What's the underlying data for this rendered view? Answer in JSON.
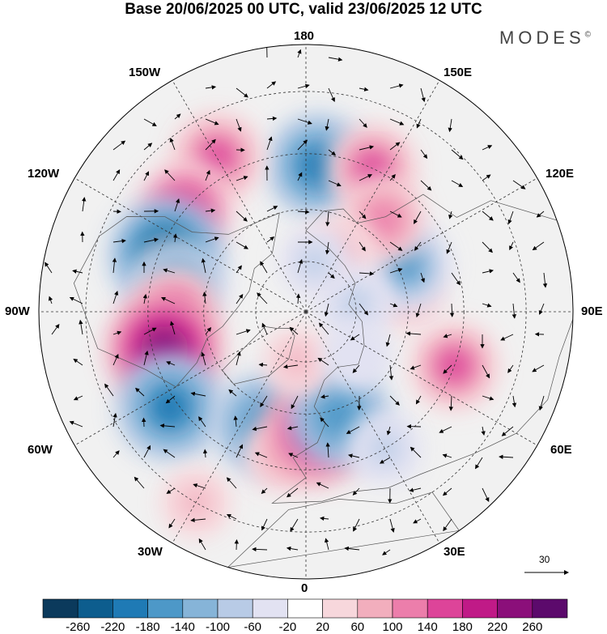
{
  "title": "Base 20/06/2025 00 UTC, valid 23/06/2025 12 UTC",
  "brand": {
    "text": "MODES",
    "mark": "©"
  },
  "longitude_labels": {
    "top": "180",
    "bottom": "0",
    "left": "90W",
    "right": "90E",
    "top_left": "150W",
    "top_right": "150E",
    "upper_left": "120W",
    "upper_right": "120E",
    "lower_left": "60W",
    "lower_right": "60E",
    "bottom_left": "30W",
    "bottom_right": "30E"
  },
  "vector_scale": {
    "value": "30"
  },
  "colorbar": {
    "labels": [
      "-260",
      "-220",
      "-180",
      "-140",
      "-100",
      "-60",
      "-20",
      "20",
      "60",
      "100",
      "140",
      "180",
      "220",
      "260"
    ],
    "colors": [
      "#0b3a5c",
      "#0d5d8e",
      "#1f7ab5",
      "#4d98c8",
      "#86b4d8",
      "#b8cbe6",
      "#e2e2f2",
      "#ffffff",
      "#f7d7dc",
      "#f2aebd",
      "#ec7eab",
      "#dd4499",
      "#c01a87",
      "#8b0f7a",
      "#5c0a6c"
    ]
  },
  "map": {
    "projection": "north-polar-stereographic",
    "anomalies": [
      {
        "lon": 175,
        "lat": 48,
        "value": -190
      },
      {
        "lon": 155,
        "lat": 45,
        "value": 140
      },
      {
        "lon": -150,
        "lat": 40,
        "value": 150
      },
      {
        "lon": -130,
        "lat": 45,
        "value": 170
      },
      {
        "lon": -112,
        "lat": 47,
        "value": -230
      },
      {
        "lon": -100,
        "lat": 52,
        "value": -170
      },
      {
        "lon": -90,
        "lat": 52,
        "value": 140
      },
      {
        "lon": -75,
        "lat": 48,
        "value": 230
      },
      {
        "lon": -55,
        "lat": 43,
        "value": -200
      },
      {
        "lon": -30,
        "lat": 30,
        "value": 70
      },
      {
        "lon": -20,
        "lat": 55,
        "value": -180
      },
      {
        "lon": -10,
        "lat": 48,
        "value": 80
      },
      {
        "lon": 5,
        "lat": 55,
        "value": 200
      },
      {
        "lon": 18,
        "lat": 58,
        "value": -180
      },
      {
        "lon": 30,
        "lat": 45,
        "value": -80
      },
      {
        "lon": 70,
        "lat": 45,
        "value": 140
      },
      {
        "lon": 100,
        "lat": 60,
        "value": 90
      },
      {
        "lon": 115,
        "lat": 58,
        "value": -150
      },
      {
        "lon": 140,
        "lat": 55,
        "value": 120
      },
      {
        "lon": 150,
        "lat": 70,
        "value": 90
      },
      {
        "lon": 100,
        "lat": 75,
        "value": -90
      },
      {
        "lon": -10,
        "lat": 75,
        "value": 60
      },
      {
        "lon": 50,
        "lat": 70,
        "value": -60
      },
      {
        "lon": 170,
        "lat": 75,
        "value": -70
      }
    ]
  }
}
